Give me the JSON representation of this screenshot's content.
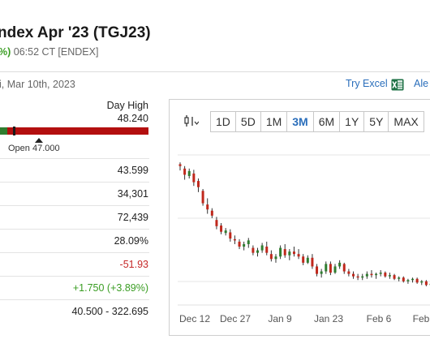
{
  "header": {
    "title": "ndex Apr '23 (TGJ23)",
    "change_pct": "%)",
    "time": "06:52 CT [ENDEX]",
    "as_of": "i, Mar 10th, 2023",
    "try_excel": "Try Excel",
    "alerts": "Ale"
  },
  "day_range": {
    "high_label": "Day High",
    "high_value": "48.240",
    "open_label": "Open 47.000",
    "open_fraction": 0.06,
    "low_fraction": 0.05
  },
  "stats": [
    {
      "value": "43.599",
      "color": "#222222"
    },
    {
      "value": "34,301",
      "color": "#222222"
    },
    {
      "value": "72,439",
      "color": "#222222"
    },
    {
      "value": "28.09%",
      "color": "#222222"
    },
    {
      "value": "-51.93",
      "color": "#c62828"
    },
    {
      "value": "+1.750 (+3.89%)",
      "color": "#3a9d23"
    },
    {
      "value": "40.500 - 322.695",
      "color": "#222222"
    }
  ],
  "chart_controls": {
    "type_icon": "candlestick-icon",
    "ranges": [
      "1D",
      "5D",
      "1M",
      "3M",
      "6M",
      "1Y",
      "5Y",
      "MAX"
    ],
    "active_range": "3M"
  },
  "chart_data": {
    "type": "candlestick",
    "x_ticks": [
      "Dec 12",
      "Dec 27",
      "Jan 9",
      "Jan 23",
      "Feb 6",
      "Feb"
    ],
    "grid": "horizontal",
    "up_color": "#2f7d2f",
    "down_color": "#c0281c",
    "ohlc": [
      [
        195,
        198,
        185,
        192
      ],
      [
        188,
        192,
        170,
        178
      ],
      [
        176,
        188,
        172,
        184
      ],
      [
        180,
        186,
        160,
        166
      ],
      [
        168,
        172,
        150,
        158
      ],
      [
        152,
        155,
        128,
        132
      ],
      [
        130,
        140,
        115,
        122
      ],
      [
        120,
        124,
        108,
        112
      ],
      [
        105,
        110,
        90,
        95
      ],
      [
        96,
        100,
        82,
        86
      ],
      [
        84,
        92,
        80,
        88
      ],
      [
        85,
        90,
        70,
        75
      ],
      [
        74,
        80,
        66,
        72
      ],
      [
        70,
        74,
        58,
        62
      ],
      [
        62,
        70,
        56,
        66
      ],
      [
        66,
        76,
        60,
        72
      ],
      [
        60,
        64,
        48,
        52
      ],
      [
        52,
        60,
        46,
        56
      ],
      [
        56,
        68,
        52,
        64
      ],
      [
        62,
        70,
        48,
        52
      ],
      [
        50,
        56,
        38,
        42
      ],
      [
        42,
        50,
        36,
        46
      ],
      [
        46,
        64,
        42,
        60
      ],
      [
        58,
        66,
        44,
        48
      ],
      [
        48,
        58,
        40,
        54
      ],
      [
        54,
        62,
        46,
        50
      ],
      [
        50,
        58,
        42,
        46
      ],
      [
        46,
        50,
        32,
        36
      ],
      [
        36,
        48,
        34,
        44
      ],
      [
        44,
        50,
        26,
        30
      ],
      [
        30,
        34,
        14,
        18
      ],
      [
        18,
        26,
        12,
        22
      ],
      [
        22,
        38,
        18,
        34
      ],
      [
        34,
        38,
        16,
        20
      ],
      [
        20,
        34,
        18,
        30
      ],
      [
        30,
        40,
        26,
        36
      ],
      [
        34,
        36,
        18,
        22
      ],
      [
        22,
        26,
        14,
        18
      ],
      [
        18,
        22,
        10,
        14
      ],
      [
        14,
        18,
        8,
        12
      ],
      [
        12,
        18,
        8,
        14
      ],
      [
        14,
        22,
        10,
        18
      ],
      [
        18,
        24,
        12,
        16
      ],
      [
        16,
        20,
        10,
        18
      ],
      [
        18,
        24,
        14,
        20
      ],
      [
        20,
        22,
        12,
        14
      ],
      [
        14,
        20,
        10,
        16
      ],
      [
        16,
        18,
        8,
        10
      ],
      [
        10,
        14,
        6,
        12
      ],
      [
        12,
        14,
        4,
        6
      ],
      [
        6,
        10,
        2,
        8
      ],
      [
        8,
        12,
        4,
        10
      ],
      [
        10,
        12,
        2,
        4
      ],
      [
        4,
        8,
        0,
        6
      ],
      [
        6,
        8,
        -2,
        0
      ],
      [
        0,
        6,
        -4,
        2
      ]
    ],
    "y_min": -10,
    "y_max": 210
  }
}
